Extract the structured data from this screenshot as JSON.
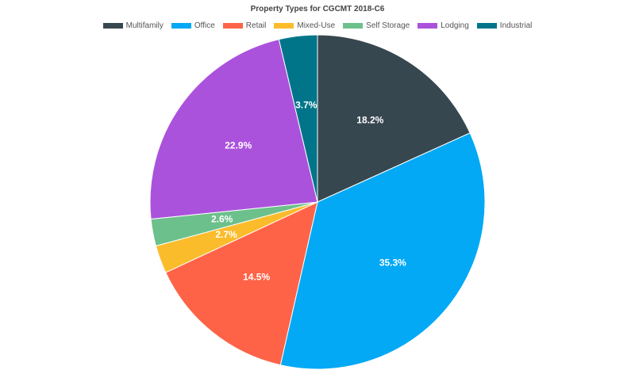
{
  "chart_data": {
    "type": "pie",
    "title": "Property Types for CGCMT 2018-C6",
    "legend_position": "top",
    "slices": [
      {
        "label": "Multifamily",
        "value": 18.2,
        "display": "18.2%",
        "color": "#37474f"
      },
      {
        "label": "Office",
        "value": 35.3,
        "display": "35.3%",
        "color": "#03a9f4"
      },
      {
        "label": "Retail",
        "value": 14.5,
        "display": "14.5%",
        "color": "#ff6347"
      },
      {
        "label": "Mixed-Use",
        "value": 2.7,
        "display": "2.7%",
        "color": "#fbbc2c"
      },
      {
        "label": "Self Storage",
        "value": 2.6,
        "display": "2.6%",
        "color": "#6cc08b"
      },
      {
        "label": "Lodging",
        "value": 22.9,
        "display": "22.9%",
        "color": "#ab52dc"
      },
      {
        "label": "Industrial",
        "value": 3.7,
        "display": "3.7%",
        "color": "#00758a"
      }
    ]
  }
}
